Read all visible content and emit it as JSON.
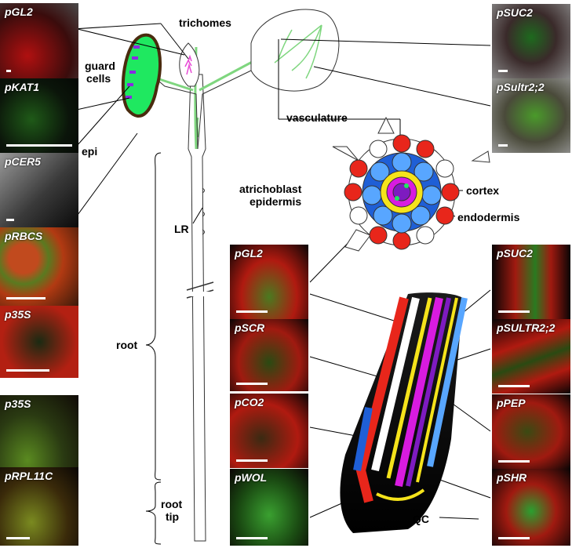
{
  "labels": {
    "trichomes": "trichomes",
    "guard": "guard",
    "cells": "cells",
    "epi": "epi",
    "vasculature": "vasculature",
    "atrichoblast": "atrichoblast",
    "epidermis": "epidermis",
    "cortex": "cortex",
    "endodermis": "endodermis",
    "lr": "LR",
    "root": "root",
    "root_tip_1": "root",
    "root_tip_2": "tip",
    "qc": "QC"
  },
  "panels": {
    "gl2_leaf": "pGL2",
    "kat1": "pKAT1",
    "cer5": "pCER5",
    "rbcs": "pRBCS",
    "p35s_leaf": "p35S",
    "suc2_leaf": "pSUC2",
    "sultr22_leaf": "pSultr2;2",
    "p35s_root": "p35S",
    "rpl11c": "pRPL11C",
    "gl2_root": "pGL2",
    "scr": "pSCR",
    "co2": "pCO2",
    "wol": "pWOL",
    "suc2_root": "pSUC2",
    "sultr22_root": "pSULTR2;2",
    "pep": "pPEP",
    "shr": "pSHR"
  },
  "colors": {
    "gfp_green": "#2ecc40",
    "stain_red": "#e8261b",
    "epidermis_red": "#e8261b",
    "cortex_blue": "#1f5fd6",
    "endodermis_yellow": "#f5e31b",
    "vasculature_magenta": "#d81be0",
    "guard_cell_green": "#1fe860"
  }
}
